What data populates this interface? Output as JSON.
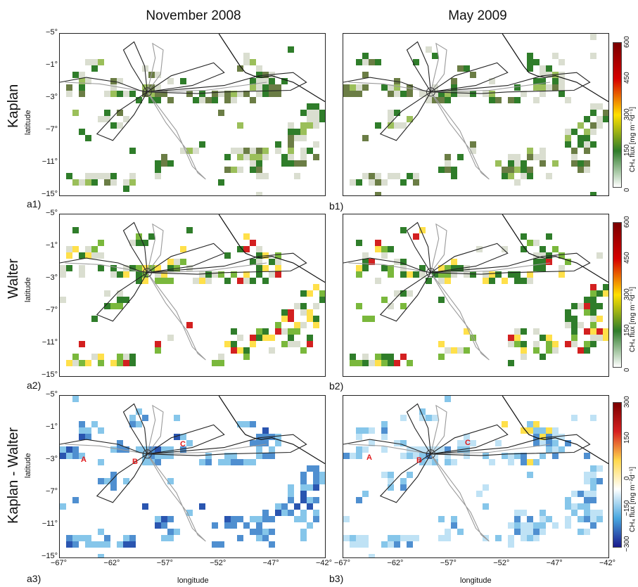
{
  "columns": [
    "November 2008",
    "May 2009"
  ],
  "rows": [
    "Kaplan",
    "Walter",
    "Kaplan - Walter"
  ],
  "ylabel": "latitude",
  "xlabel": "longitude",
  "lat_ticks": [
    "−5°",
    "−1°",
    "−3°",
    "−7°",
    "−11°",
    "−15°"
  ],
  "lon_ticks": [
    "−67°",
    "−62°",
    "−57°",
    "−52°",
    "−47°",
    "−42°"
  ],
  "panel_tags": {
    "a1": "a1)",
    "b1": "b1)",
    "a2": "a2)",
    "b2": "b2)",
    "a3": "a3)",
    "b3": "b3)"
  },
  "annotations": [
    "A",
    "B",
    "C"
  ],
  "colorbars": [
    {
      "label": "CH₄ flux [mg m⁻²d⁻¹]",
      "ticks": [
        "0",
        "150",
        "300",
        "450",
        "600"
      ],
      "colors": [
        "#ffffff",
        "#2f7d2a",
        "#ffe000",
        "#d60000",
        "#7a0000"
      ]
    },
    {
      "label": "CH₄ flux [mg m⁻²d⁻¹]",
      "ticks": [
        "0",
        "150",
        "300",
        "450",
        "600"
      ],
      "colors": [
        "#ffffff",
        "#2f7d2a",
        "#ffe000",
        "#d60000",
        "#7a0000"
      ]
    },
    {
      "label": "CH₄ flux [mg m⁻²d⁻¹]",
      "ticks": [
        "−300",
        "−150",
        "0",
        "150",
        "300"
      ],
      "colors": [
        "#1a1a8c",
        "#4aa8e0",
        "#ffffff",
        "#ffd84d",
        "#d62020",
        "#7a0000"
      ]
    }
  ],
  "chart_data": {
    "type": "heatmap",
    "x_range": [
      -67,
      -42
    ],
    "y_range": [
      -15,
      -5
    ],
    "colors": {
      "green": "#2f7d2a",
      "olive": "#6b7d45",
      "blue": "#2a55b0",
      "lightblue": "#86c6ea",
      "yellow": "#ffe04a",
      "red": "#d32020",
      "coast": "#111111",
      "track_dark": "#222222",
      "track_light": "#9a9a9a"
    }
  }
}
